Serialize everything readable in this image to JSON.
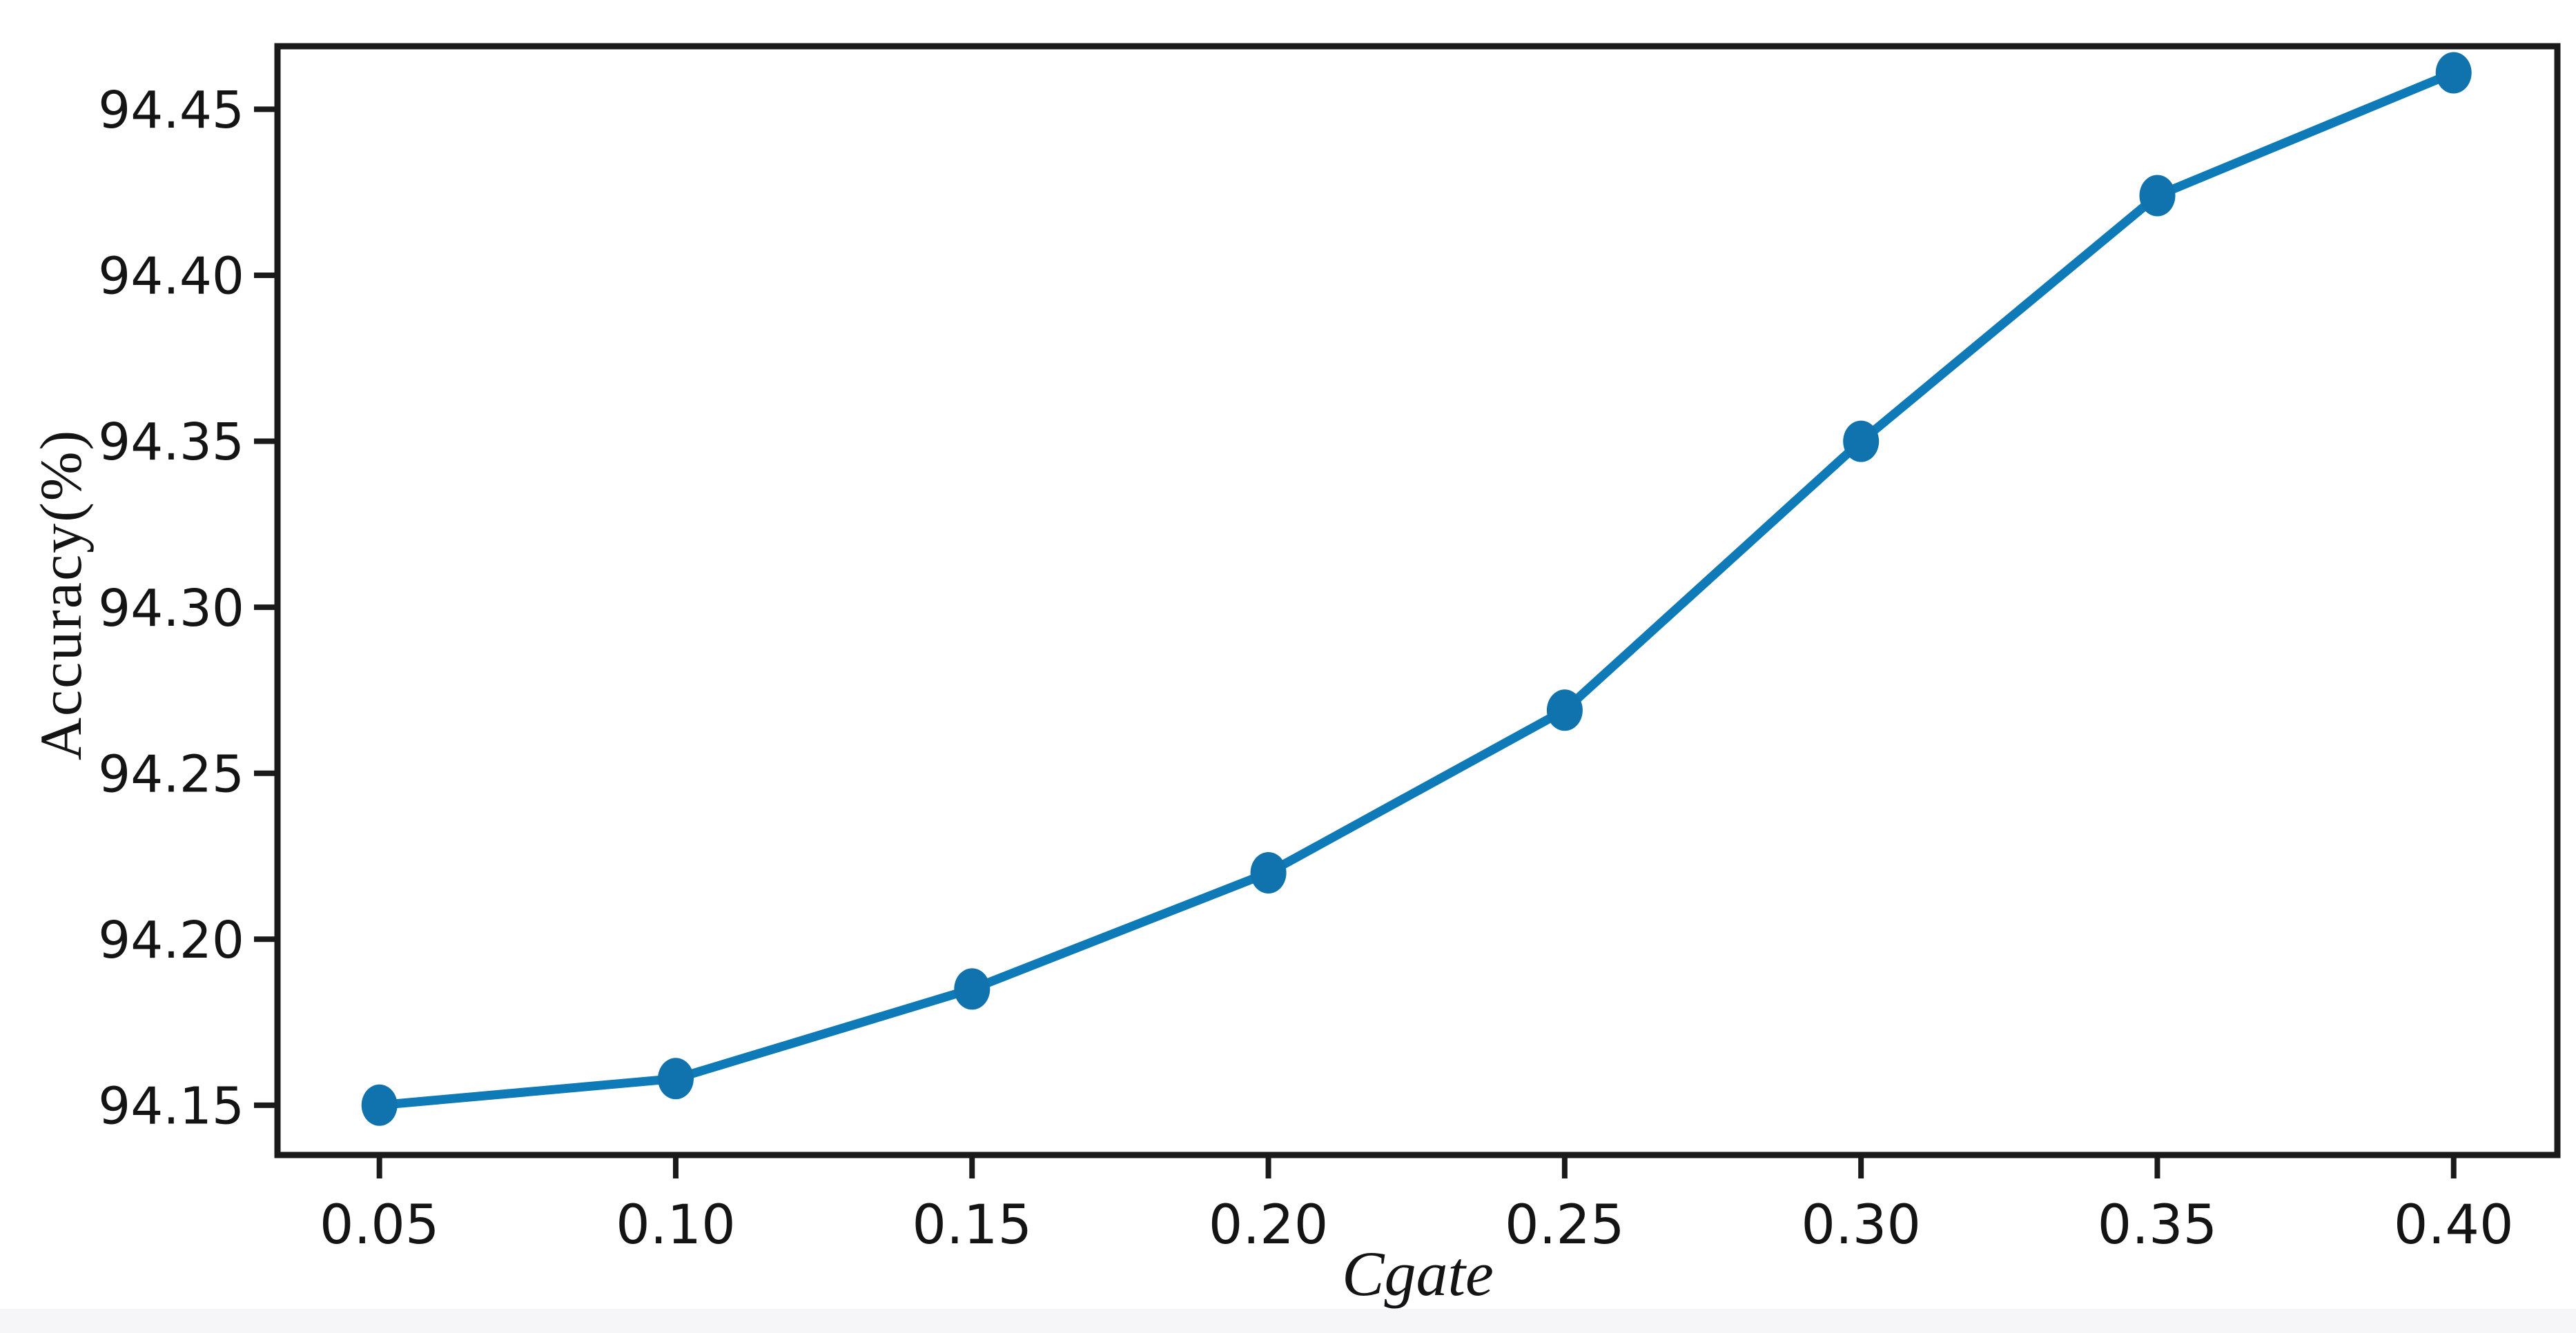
{
  "figure": {
    "background": "#ffffff",
    "bottom_strip_color": "#f6f6f8"
  },
  "chart_data": {
    "type": "line",
    "title": "",
    "xlabel": "Cgate",
    "ylabel": "Accuracy(%)",
    "x": [
      0.05,
      0.1,
      0.15,
      0.2,
      0.25,
      0.3,
      0.35,
      0.4
    ],
    "series": [
      {
        "name": "accuracy-vs-cgate",
        "values": [
          94.15,
          94.158,
          94.185,
          94.22,
          94.269,
          94.35,
          94.424,
          94.461
        ]
      }
    ],
    "x_tick_values": [
      0.05,
      0.1,
      0.15,
      0.2,
      0.25,
      0.3,
      0.35,
      0.4
    ],
    "x_tick_labels": [
      "0.05",
      "0.10",
      "0.15",
      "0.20",
      "0.25",
      "0.30",
      "0.35",
      "0.40"
    ],
    "y_tick_values": [
      94.15,
      94.2,
      94.25,
      94.3,
      94.35,
      94.4,
      94.45
    ],
    "y_tick_labels": [
      "94.15",
      "94.20",
      "94.25",
      "94.30",
      "94.35",
      "94.40",
      "94.45"
    ],
    "xlim": [
      0.0328,
      0.4175
    ],
    "ylim": [
      94.135,
      94.469
    ],
    "grid": false,
    "legend": null,
    "colors": {
      "line": "#0f7ab8",
      "marker": "#1173ae",
      "axis": "#1a1a1a",
      "tick_label": "#141414"
    }
  }
}
